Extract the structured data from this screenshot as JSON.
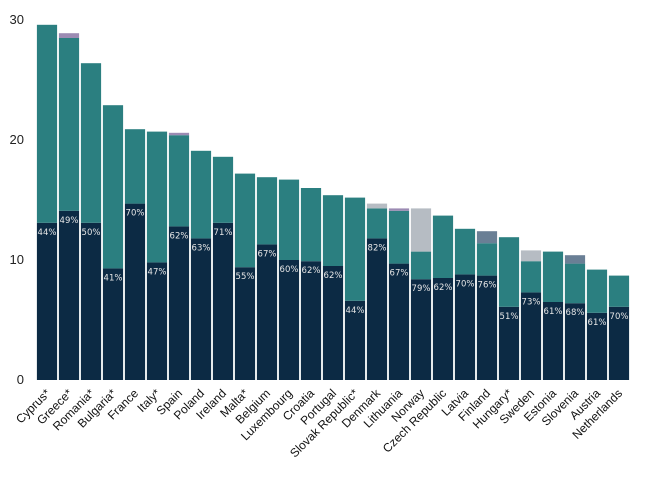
{
  "chart_data": {
    "type": "bar",
    "stacked": true,
    "ylim": [
      0,
      30
    ],
    "yticks": [
      0,
      10,
      20,
      30
    ],
    "grid": false,
    "colors": {
      "bottom": "#0c2a44",
      "middle": "#2b7f80",
      "top_purple": "#9c8bb3",
      "top_gray": "#b6bcc3",
      "top_slate": "#6a7f95"
    },
    "categories": [
      "Cyprus*",
      "Greece*",
      "Romania*",
      "Bulgaria*",
      "France",
      "Italy*",
      "Spain",
      "Poland",
      "Ireland",
      "Malta*",
      "Belgium",
      "Luxembourg",
      "Croatia",
      "Portugal",
      "Slovak Republic*",
      "Denmark",
      "Lithuania",
      "Norway",
      "Czech Republic",
      "Latvia",
      "Finland",
      "Hungary*",
      "Sweden",
      "Estonia",
      "Slovenia",
      "Austria",
      "Netherlands"
    ],
    "series": [
      {
        "values": [
          13.1,
          14.1,
          13.1,
          9.3,
          14.7,
          9.8,
          12.8,
          11.8,
          13.1,
          9.4,
          11.3,
          10.0,
          9.9,
          9.5,
          6.6,
          11.8,
          9.7,
          8.4,
          8.5,
          8.8,
          8.7,
          6.1,
          7.3,
          6.5,
          6.4,
          5.6,
          6.1
        ]
      },
      {
        "values": [
          16.5,
          14.4,
          13.3,
          13.6,
          6.2,
          10.9,
          7.6,
          7.3,
          5.5,
          7.8,
          5.6,
          6.7,
          6.1,
          5.9,
          8.6,
          2.5,
          4.4,
          2.3,
          5.2,
          3.8,
          2.7,
          5.8,
          2.6,
          4.2,
          3.3,
          3.6,
          2.6
        ]
      },
      {
        "values": [
          0,
          0.4,
          0,
          0,
          0,
          0,
          0.2,
          0,
          0,
          0,
          0,
          0,
          0,
          0,
          0,
          0.4,
          0.2,
          3.6,
          0,
          0,
          1.0,
          0,
          0.9,
          0,
          0.7,
          0,
          0
        ],
        "color_keys": [
          "",
          "top_purple",
          "",
          "",
          "",
          "",
          "top_purple",
          "",
          "",
          "",
          "",
          "",
          "",
          "",
          "",
          "top_gray",
          "top_purple",
          "top_gray",
          "",
          "",
          "top_slate",
          "",
          "top_gray",
          "",
          "top_slate",
          "",
          ""
        ]
      }
    ],
    "labels": [
      "44%",
      "49%",
      "50%",
      "41%",
      "70%",
      "47%",
      "62%",
      "63%",
      "71%",
      "55%",
      "67%",
      "60%",
      "62%",
      "62%",
      "44%",
      "82%",
      "67%",
      "79%",
      "62%",
      "70%",
      "76%",
      "51%",
      "73%",
      "61%",
      "68%",
      "61%",
      "70%"
    ]
  }
}
